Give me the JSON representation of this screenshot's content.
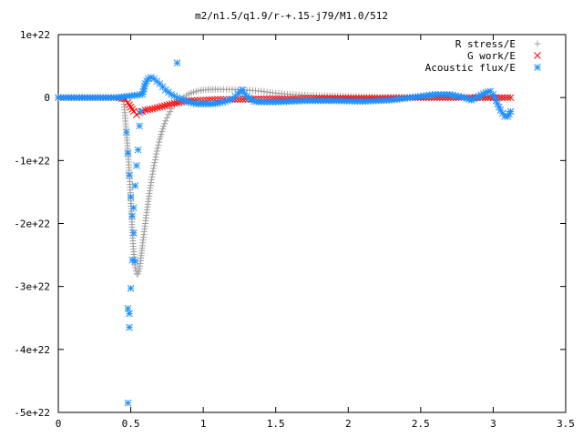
{
  "chart_data": {
    "type": "scatter",
    "title": "m2/n1.5/q1.9/r-+.15-j79/M1.0/512",
    "xlabel": "",
    "ylabel": "",
    "xlim": [
      0,
      3.5
    ],
    "ylim": [
      -5e+22,
      1e+22
    ],
    "grid": false,
    "legend": "top-right",
    "x_ticks": [
      {
        "value": 0,
        "label": "0"
      },
      {
        "value": 0.5,
        "label": "0.5"
      },
      {
        "value": 1,
        "label": "1"
      },
      {
        "value": 1.5,
        "label": "1.5"
      },
      {
        "value": 2,
        "label": "2"
      },
      {
        "value": 2.5,
        "label": "2.5"
      },
      {
        "value": 3,
        "label": "3"
      },
      {
        "value": 3.5,
        "label": "3.5"
      }
    ],
    "y_ticks": [
      {
        "value": 1e+22,
        "label": "1e+22"
      },
      {
        "value": 0,
        "label": "0"
      },
      {
        "value": -1e+22,
        "label": "-1e+22"
      },
      {
        "value": -2e+22,
        "label": "-2e+22"
      },
      {
        "value": -3e+22,
        "label": "-3e+22"
      },
      {
        "value": -4e+22,
        "label": "-4e+22"
      },
      {
        "value": -5e+22,
        "label": "-5e+22"
      }
    ],
    "series": [
      {
        "name": "R stress/E",
        "marker": "plus",
        "color": "#a0a0a0",
        "points": [
          [
            0,
            0
          ],
          [
            0.2,
            0
          ],
          [
            0.4,
            0
          ],
          [
            0.45,
            -0.02
          ],
          [
            0.47,
            -0.55
          ],
          [
            0.48,
            -0.85
          ],
          [
            0.49,
            -1.2
          ],
          [
            0.5,
            -1.6
          ],
          [
            0.51,
            -2.1
          ],
          [
            0.52,
            -2.45
          ],
          [
            0.53,
            -2.7
          ],
          [
            0.54,
            -2.8
          ],
          [
            0.55,
            -2.8
          ],
          [
            0.56,
            -2.72
          ],
          [
            0.57,
            -2.55
          ],
          [
            0.58,
            -2.35
          ],
          [
            0.6,
            -2.0
          ],
          [
            0.62,
            -1.65
          ],
          [
            0.64,
            -1.35
          ],
          [
            0.66,
            -1.08
          ],
          [
            0.68,
            -0.85
          ],
          [
            0.7,
            -0.66
          ],
          [
            0.72,
            -0.5
          ],
          [
            0.74,
            -0.37
          ],
          [
            0.76,
            -0.27
          ],
          [
            0.78,
            -0.18
          ],
          [
            0.8,
            -0.12
          ],
          [
            0.85,
            -0.02
          ],
          [
            0.9,
            0.06
          ],
          [
            0.95,
            0.1
          ],
          [
            1.0,
            0.12
          ],
          [
            1.05,
            0.13
          ],
          [
            1.1,
            0.13
          ],
          [
            1.2,
            0.13
          ],
          [
            1.3,
            0.12
          ],
          [
            1.4,
            0.1
          ],
          [
            1.5,
            0.07
          ],
          [
            1.6,
            0.05
          ],
          [
            1.7,
            0.04
          ],
          [
            1.8,
            0.03
          ],
          [
            2.0,
            0.02
          ],
          [
            2.2,
            0.01
          ],
          [
            2.5,
            0.01
          ],
          [
            2.8,
            0.0
          ],
          [
            3.0,
            0.0
          ],
          [
            3.12,
            0.0
          ]
        ]
      },
      {
        "name": "G work/E",
        "marker": "cross",
        "color": "#ff0000",
        "points": [
          [
            0,
            0
          ],
          [
            0.2,
            0
          ],
          [
            0.4,
            0
          ],
          [
            0.46,
            -0.02
          ],
          [
            0.48,
            -0.08
          ],
          [
            0.5,
            -0.15
          ],
          [
            0.52,
            -0.22
          ],
          [
            0.54,
            -0.27
          ],
          [
            0.56,
            -0.24
          ],
          [
            0.58,
            -0.22
          ],
          [
            0.6,
            -0.2
          ],
          [
            0.65,
            -0.18
          ],
          [
            0.7,
            -0.15
          ],
          [
            0.75,
            -0.12
          ],
          [
            0.8,
            -0.09
          ],
          [
            0.85,
            -0.07
          ],
          [
            0.9,
            -0.05
          ],
          [
            1.0,
            -0.04
          ],
          [
            1.1,
            -0.03
          ],
          [
            1.2,
            -0.03
          ],
          [
            1.4,
            -0.02
          ],
          [
            1.6,
            -0.02
          ],
          [
            1.8,
            -0.01
          ],
          [
            2.0,
            -0.01
          ],
          [
            2.2,
            -0.01
          ],
          [
            2.5,
            0.0
          ],
          [
            2.8,
            0.0
          ],
          [
            3.0,
            0.0
          ],
          [
            3.12,
            0.0
          ]
        ]
      },
      {
        "name": "Acoustic flux/E",
        "marker": "star",
        "color": "#1e90ff",
        "points": [
          [
            0,
            0
          ],
          [
            0.2,
            0
          ],
          [
            0.4,
            0
          ],
          [
            0.47,
            -0.55
          ],
          [
            0.48,
            -0.88
          ],
          [
            0.49,
            -1.23
          ],
          [
            0.5,
            -1.58
          ],
          [
            0.51,
            -1.88
          ],
          [
            0.52,
            -2.15
          ],
          [
            0.53,
            -2.6
          ],
          [
            0.48,
            -3.35
          ],
          [
            0.49,
            -3.43
          ],
          [
            0.49,
            -3.65
          ],
          [
            0.48,
            -4.85
          ],
          [
            0.5,
            -3.03
          ],
          [
            0.51,
            -2.58
          ],
          [
            0.52,
            -1.75
          ],
          [
            0.53,
            -1.4
          ],
          [
            0.54,
            -1.08
          ],
          [
            0.55,
            -0.83
          ],
          [
            0.56,
            -0.45
          ],
          [
            0.57,
            -0.22
          ],
          [
            0.58,
            0.05
          ],
          [
            0.6,
            0.22
          ],
          [
            0.62,
            0.3
          ],
          [
            0.64,
            0.32
          ],
          [
            0.66,
            0.3
          ],
          [
            0.7,
            0.22
          ],
          [
            0.74,
            0.12
          ],
          [
            0.78,
            0.05
          ],
          [
            0.82,
            0.0
          ],
          [
            0.86,
            -0.04
          ],
          [
            0.9,
            -0.07
          ],
          [
            0.95,
            -0.1
          ],
          [
            1.0,
            -0.1
          ],
          [
            1.05,
            -0.1
          ],
          [
            1.1,
            -0.09
          ],
          [
            1.15,
            -0.06
          ],
          [
            1.2,
            -0.02
          ],
          [
            1.24,
            0.06
          ],
          [
            1.27,
            0.12
          ],
          [
            1.3,
            0.02
          ],
          [
            1.35,
            -0.06
          ],
          [
            1.4,
            -0.07
          ],
          [
            1.5,
            -0.07
          ],
          [
            1.7,
            -0.05
          ],
          [
            1.9,
            -0.05
          ],
          [
            2.1,
            -0.06
          ],
          [
            2.3,
            -0.04
          ],
          [
            2.5,
            0.02
          ],
          [
            2.6,
            0.05
          ],
          [
            2.7,
            0.05
          ],
          [
            2.8,
            0.0
          ],
          [
            2.85,
            -0.04
          ],
          [
            2.9,
            0.02
          ],
          [
            2.95,
            0.08
          ],
          [
            2.98,
            0.1
          ],
          [
            3.0,
            0.05
          ],
          [
            3.02,
            -0.05
          ],
          [
            3.05,
            -0.2
          ],
          [
            3.08,
            -0.3
          ],
          [
            3.1,
            -0.3
          ],
          [
            3.12,
            -0.22
          ]
        ]
      },
      {
        "name": "",
        "role": "outlier",
        "marker": "star",
        "color": "#1e90ff",
        "points": [
          [
            0.82,
            0.55
          ]
        ]
      }
    ]
  }
}
